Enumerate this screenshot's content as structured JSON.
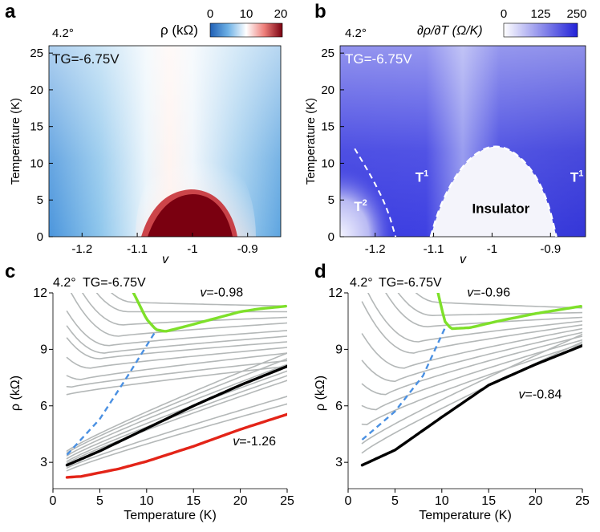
{
  "chart_data": [
    {
      "panel": "a",
      "type": "heatmap",
      "angle": "4.2°",
      "gate": "TG=-6.75V",
      "xlabel": "v",
      "ylabel": "Temperature (K)",
      "xlim": [
        -1.26,
        -0.84
      ],
      "ylim": [
        0,
        26
      ],
      "x_ticks": [
        -1.2,
        -1.1,
        -1,
        -0.9
      ],
      "x_tick_labels": [
        "-1.2",
        "-1.1",
        "-1",
        "-0.9"
      ],
      "y_ticks": [
        0,
        5,
        10,
        15,
        20,
        25
      ],
      "y_tick_labels": [
        "0",
        "5",
        "10",
        "15",
        "20",
        "25"
      ],
      "colorbar": {
        "label": "ρ (kΩ)",
        "min": 0,
        "max": 20,
        "ticks": [
          0,
          10,
          20
        ],
        "tick_labels": [
          "0",
          "10",
          "20"
        ],
        "colors": [
          "#1f5fb5",
          "#ffffff",
          "#7a0010"
        ]
      },
      "description_points": {
        "insulator_peak_T": 7.5,
        "insulator_center_v": -1.0
      }
    },
    {
      "panel": "b",
      "type": "heatmap",
      "angle": "4.2°",
      "gate": "TG=-6.75V",
      "xlabel": "v",
      "ylabel": "Temperature (K)",
      "xlim": [
        -1.26,
        -0.84
      ],
      "ylim": [
        0,
        26
      ],
      "x_ticks": [
        -1.2,
        -1.1,
        -1,
        -0.9
      ],
      "x_tick_labels": [
        "-1.2",
        "-1.1",
        "-1",
        "-0.9"
      ],
      "y_ticks": [
        0,
        5,
        10,
        15,
        20,
        25
      ],
      "y_tick_labels": [
        "0",
        "5",
        "10",
        "15",
        "20",
        "25"
      ],
      "colorbar": {
        "label": "∂ρ/∂T (Ω/K)",
        "min": 0,
        "max": 250,
        "ticks": [
          0,
          125,
          250
        ],
        "tick_labels": [
          "0",
          "125",
          "250"
        ],
        "colors": [
          "#ffffff",
          "#2020d8"
        ]
      },
      "regions": [
        {
          "label": "T",
          "exp": "2",
          "v": -1.225,
          "T": 3.5
        },
        {
          "label": "T",
          "exp": "1",
          "v": -1.12,
          "T": 7.5
        },
        {
          "label": "T",
          "exp": "1",
          "v": -0.855,
          "T": 7.5
        },
        {
          "label": "Insulator",
          "exp": "",
          "v": -0.985,
          "T": 3.2
        }
      ],
      "boundary_dome": [
        [
          -1.105,
          0
        ],
        [
          -1.09,
          4
        ],
        [
          -1.065,
          8
        ],
        [
          -1.035,
          11
        ],
        [
          -1.0,
          12.5
        ],
        [
          -0.965,
          11.8
        ],
        [
          -0.93,
          9
        ],
        [
          -0.905,
          5
        ],
        [
          -0.89,
          0
        ]
      ],
      "boundary_left": [
        [
          -1.235,
          12
        ],
        [
          -1.205,
          8
        ],
        [
          -1.18,
          4
        ],
        [
          -1.165,
          0
        ]
      ]
    },
    {
      "panel": "c",
      "type": "line",
      "angle": "4.2°",
      "gate": "TG=-6.75V",
      "xlabel": "Temperature (K)",
      "ylabel": "ρ (kΩ)",
      "xlim": [
        0,
        25
      ],
      "ylim": [
        1.6,
        12
      ],
      "x_ticks": [
        0,
        5,
        10,
        15,
        20,
        25
      ],
      "x_tick_labels": [
        "0",
        "5",
        "10",
        "15",
        "20",
        "25"
      ],
      "y_ticks": [
        3,
        6,
        9,
        12
      ],
      "y_tick_labels": [
        "3",
        "6",
        "9",
        "12"
      ],
      "labels": [
        {
          "text": "v=-0.98",
          "T": 18,
          "rho": 11.8
        },
        {
          "text": "v=-1.26",
          "T": 21.5,
          "rho": 3.9
        }
      ],
      "series": [
        {
          "name": "v=-0.98",
          "color": "#7ee02a",
          "x": [
            8.6,
            10,
            11,
            12,
            14,
            17,
            20,
            22,
            25
          ],
          "y": [
            12,
            10.6,
            10.05,
            9.95,
            10.2,
            10.6,
            11,
            11.15,
            11.3
          ]
        },
        {
          "name": "black",
          "color": "#000000",
          "x": [
            1.5,
            5,
            10,
            15,
            20,
            25
          ],
          "y": [
            2.85,
            3.6,
            4.8,
            6.0,
            7.1,
            8.1
          ]
        },
        {
          "name": "v=-1.26",
          "color": "#e32418",
          "x": [
            1.5,
            3,
            7,
            10,
            15,
            20,
            25
          ],
          "y": [
            2.2,
            2.25,
            2.65,
            3.05,
            3.85,
            4.75,
            5.55
          ]
        }
      ],
      "grey_curves": {
        "min_T": [
          8.6,
          8.0,
          7.5,
          7.0,
          6.0,
          5.5,
          5.0,
          4.0,
          3.0,
          2.0,
          1.5
        ],
        "min_rho": [
          11.5,
          11.0,
          10.3,
          9.7,
          9.2,
          8.8,
          8.5,
          8.0,
          7.4,
          7.0,
          6.6
        ],
        "high_T_rho": [
          11.3,
          11.0,
          10.7,
          10.4,
          10.0,
          9.7,
          9.4,
          9.1,
          8.8,
          8.4,
          8.1
        ],
        "monotonic_low_T_rho": [
          2.55,
          2.7,
          2.95,
          3.05,
          3.2,
          3.35,
          3.5,
          3.6
        ],
        "monotonic_high_T_rho": [
          6.1,
          6.5,
          7.35,
          7.6,
          7.85,
          8.2,
          8.5,
          8.8
        ]
      },
      "dashed_minimum": {
        "x": [
          1.5,
          5,
          8,
          11
        ],
        "y": [
          3.4,
          5.3,
          7.6,
          10.0
        ]
      }
    },
    {
      "panel": "d",
      "type": "line",
      "angle": "4.2°",
      "gate": "TG=-6.75V",
      "xlabel": "Temperature (K)",
      "ylabel": "ρ (kΩ)",
      "xlim": [
        0,
        25
      ],
      "ylim": [
        1.6,
        12
      ],
      "x_ticks": [
        0,
        5,
        10,
        15,
        20,
        25
      ],
      "x_tick_labels": [
        "0",
        "5",
        "10",
        "15",
        "20",
        "25"
      ],
      "y_ticks": [
        3,
        6,
        9,
        12
      ],
      "y_tick_labels": [
        "3",
        "6",
        "9",
        "12"
      ],
      "labels": [
        {
          "text": "v=-0.96",
          "T": 15,
          "rho": 11.8
        },
        {
          "text": "v=-0.84",
          "T": 20.5,
          "rho": 6.4
        }
      ],
      "series": [
        {
          "name": "v=-0.96",
          "color": "#7ee02a",
          "x": [
            9.6,
            10.3,
            11,
            13,
            16,
            20,
            25
          ],
          "y": [
            12,
            10.5,
            10.1,
            10.15,
            10.5,
            10.9,
            11.3
          ]
        },
        {
          "name": "v=-0.84",
          "color": "#000000",
          "x": [
            1.5,
            5,
            10,
            15,
            20,
            25
          ],
          "y": [
            2.85,
            3.65,
            5.4,
            7.1,
            8.2,
            9.2
          ]
        }
      ],
      "grey_curves": {
        "min_T": [
          9.6,
          9.0,
          8.5,
          7.5,
          7.0,
          6.0,
          5.0,
          4.0,
          3.0,
          2.0
        ],
        "min_rho": [
          11.5,
          10.8,
          10.2,
          9.4,
          8.8,
          8.0,
          7.3,
          6.6,
          5.8,
          5.0
        ],
        "high_T_rho": [
          11.2,
          10.95,
          10.7,
          10.5,
          10.3,
          10.1,
          9.9,
          9.7,
          9.5,
          9.3
        ],
        "monotonic_low_T_rho": [
          3.5,
          4.0
        ],
        "monotonic_high_T_rho": [
          9.4,
          9.8
        ]
      },
      "dashed_minimum": {
        "x": [
          1.5,
          5,
          8,
          10.3
        ],
        "y": [
          4.2,
          5.7,
          7.6,
          10.1
        ]
      }
    }
  ]
}
